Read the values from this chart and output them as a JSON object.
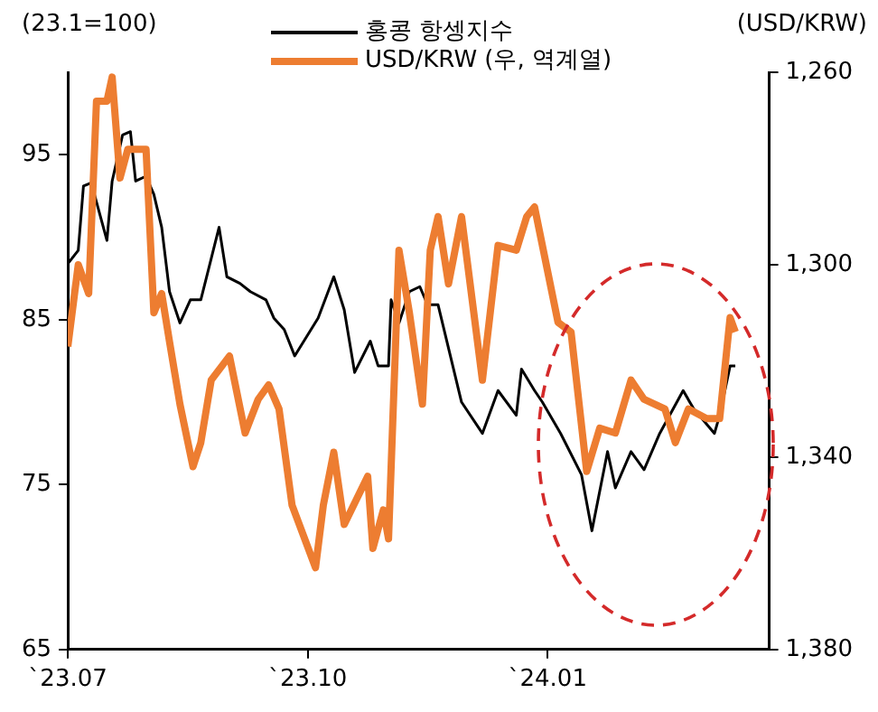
{
  "chart_data": {
    "type": "line",
    "ylabel": "(23.1=100)",
    "y2label": "(USD/KRW)",
    "legend": "top",
    "grid": false,
    "marker": "none",
    "line_style": "solid",
    "xlim": [
      "2023-07-01",
      "2024-03-26"
    ],
    "xticks": [
      {
        "value": "2023-07-01",
        "label": "`23.07"
      },
      {
        "value": "2023-10-01",
        "label": "`23.10"
      },
      {
        "value": "2024-01-01",
        "label": "`24.01"
      }
    ],
    "ylim": [
      65,
      100
    ],
    "yticks": [
      65,
      75,
      85,
      95
    ],
    "y2lim": [
      1380,
      1260
    ],
    "y2ticks": [
      {
        "value": 1260,
        "label": "1,260"
      },
      {
        "value": 1300,
        "label": "1,300"
      },
      {
        "value": 1340,
        "label": "1,340"
      },
      {
        "value": 1380,
        "label": "1,380"
      }
    ],
    "series": [
      {
        "name": "홍콩 항셍지수",
        "color": "#000000",
        "x": [
          "2023-07-01",
          "2023-07-05",
          "2023-07-07",
          "2023-07-10",
          "2023-07-16",
          "2023-07-18",
          "2023-07-22",
          "2023-07-25",
          "2023-07-27",
          "2023-07-31",
          "2023-08-03",
          "2023-08-06",
          "2023-08-09",
          "2023-08-13",
          "2023-08-17",
          "2023-08-21",
          "2023-08-25",
          "2023-08-28",
          "2023-08-31",
          "2023-09-05",
          "2023-09-09",
          "2023-09-15",
          "2023-09-18",
          "2023-09-22",
          "2023-09-26",
          "2023-10-05",
          "2023-10-11",
          "2023-10-15",
          "2023-10-19",
          "2023-10-25",
          "2023-10-28",
          "2023-11-01",
          "2023-11-02",
          "2023-11-05",
          "2023-11-09",
          "2023-11-13",
          "2023-11-16",
          "2023-11-20",
          "2023-11-29",
          "2023-12-07",
          "2023-12-13",
          "2023-12-20",
          "2023-12-22",
          "2023-12-27",
          "2023-12-30",
          "2024-01-06",
          "2024-01-14",
          "2024-01-18",
          "2024-01-24",
          "2024-01-27",
          "2024-02-02",
          "2024-02-07",
          "2024-02-13",
          "2024-02-22",
          "2024-02-26",
          "2024-03-05",
          "2024-03-07",
          "2024-03-11",
          "2024-03-13"
        ],
        "values": [
          88.4,
          89.2,
          93.1,
          93.3,
          89.8,
          93.4,
          96.2,
          96.4,
          93.4,
          93.7,
          92.6,
          90.6,
          86.7,
          84.8,
          86.2,
          86.2,
          88.7,
          90.6,
          87.6,
          87.2,
          86.7,
          86.2,
          85.1,
          84.4,
          82.8,
          85.1,
          87.6,
          85.6,
          81.8,
          83.7,
          82.2,
          82.2,
          86.2,
          84.8,
          86.7,
          87.0,
          85.9,
          85.9,
          80.0,
          78.1,
          80.7,
          79.2,
          82.0,
          80.7,
          80.0,
          78.1,
          75.6,
          72.2,
          77.0,
          74.8,
          77.0,
          75.9,
          78.1,
          80.7,
          79.6,
          78.1,
          79.2,
          82.2,
          82.2
        ]
      },
      {
        "name": "USD/KRW (우, 역계열)",
        "color": "#ed7d31",
        "axis": "y2",
        "x": [
          "2023-07-01",
          "2023-07-05",
          "2023-07-09",
          "2023-07-12",
          "2023-07-16",
          "2023-07-18",
          "2023-07-21",
          "2023-07-24",
          "2023-07-31",
          "2023-08-03",
          "2023-08-06",
          "2023-08-09",
          "2023-08-13",
          "2023-08-18",
          "2023-08-21",
          "2023-08-25",
          "2023-09-01",
          "2023-09-07",
          "2023-09-12",
          "2023-09-16",
          "2023-09-20",
          "2023-09-25",
          "2023-10-04",
          "2023-10-07",
          "2023-10-11",
          "2023-10-15",
          "2023-10-24",
          "2023-10-26",
          "2023-10-30",
          "2023-11-01",
          "2023-11-05",
          "2023-11-09",
          "2023-11-14",
          "2023-11-17",
          "2023-11-20",
          "2023-11-24",
          "2023-11-29",
          "2023-12-07",
          "2023-12-13",
          "2023-12-20",
          "2023-12-24",
          "2023-12-27",
          "2024-01-05",
          "2024-01-10",
          "2024-01-16",
          "2024-01-21",
          "2024-01-27",
          "2024-02-02",
          "2024-02-07",
          "2024-02-15",
          "2024-02-19",
          "2024-02-24",
          "2024-03-02",
          "2024-03-07",
          "2024-03-11",
          "2024-03-13"
        ],
        "values": [
          1317,
          1300,
          1306,
          1266,
          1266,
          1261,
          1282,
          1276,
          1276,
          1310,
          1306,
          1316,
          1329,
          1342,
          1337,
          1324,
          1319,
          1335,
          1328,
          1325,
          1330,
          1350,
          1363,
          1350,
          1339,
          1354,
          1344,
          1359,
          1351,
          1357,
          1297,
          1310,
          1329,
          1297,
          1290,
          1304,
          1290,
          1324,
          1296,
          1297,
          1290,
          1288,
          1312,
          1314,
          1343,
          1334,
          1335,
          1324,
          1328,
          1330,
          1337,
          1330,
          1332,
          1332,
          1311,
          1314
        ]
      }
    ]
  }
}
